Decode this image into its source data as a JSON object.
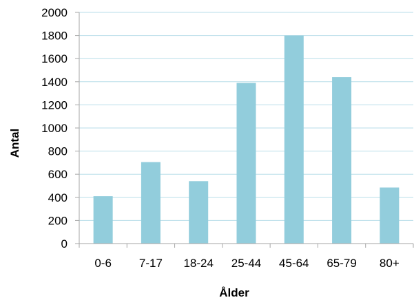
{
  "chart_data": {
    "type": "bar",
    "title": "",
    "xlabel": "Ålder",
    "ylabel": "Antal",
    "categories": [
      "0-6",
      "7-17",
      "18-24",
      "25-44",
      "45-64",
      "65-79",
      "80+"
    ],
    "values": [
      410,
      705,
      540,
      1390,
      1800,
      1440,
      485
    ],
    "ylim": [
      0,
      2000
    ],
    "y_ticks": [
      "0",
      "200",
      "400",
      "600",
      "800",
      "1000",
      "1200",
      "1400",
      "1600",
      "1800",
      "2000"
    ],
    "grid": true,
    "legend": "none",
    "colors": {
      "bar": "#92cddc",
      "grid": "#b7dde8",
      "axis": "#a6a6a6"
    }
  }
}
